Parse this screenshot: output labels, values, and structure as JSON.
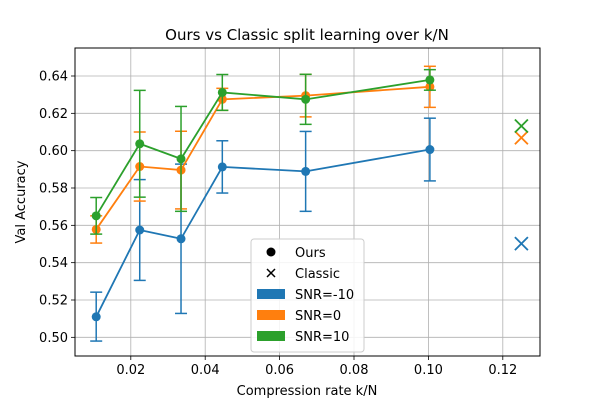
{
  "chart_data": {
    "type": "line",
    "title": "Ours vs Classic split learning over k/N",
    "xlabel": "Compression rate k/N",
    "ylabel": "Val Accuracy",
    "xlim": [
      0.005,
      0.13
    ],
    "ylim": [
      0.49,
      0.655
    ],
    "xticks": [
      0.02,
      0.04,
      0.06,
      0.08,
      0.1,
      0.12
    ],
    "xtick_labels": [
      "0.02",
      "0.04",
      "0.06",
      "0.08",
      "0.10",
      "0.12"
    ],
    "yticks": [
      0.5,
      0.52,
      0.54,
      0.56,
      0.58,
      0.6,
      0.62,
      0.64
    ],
    "ytick_labels": [
      "0.50",
      "0.52",
      "0.54",
      "0.56",
      "0.58",
      "0.60",
      "0.62",
      "0.64"
    ],
    "grid": true,
    "legend_position": "bottom-center",
    "x": [
      0.0107,
      0.0224,
      0.0335,
      0.0446,
      0.067,
      0.1004
    ],
    "series": [
      {
        "name": "SNR=-10",
        "color": "#1f77b4",
        "values": [
          0.511,
          0.5575,
          0.5528,
          0.5913,
          0.5889,
          0.6006
        ],
        "err_low": [
          0.498,
          0.5305,
          0.5128,
          0.5773,
          0.5675,
          0.5838
        ],
        "err_high": [
          0.5242,
          0.5845,
          0.5928,
          0.6053,
          0.6103,
          0.6174
        ],
        "classic": {
          "x": 0.125,
          "value": 0.5502
        }
      },
      {
        "name": "SNR=0",
        "color": "#ff7f0e",
        "values": [
          0.5578,
          0.5915,
          0.5896,
          0.6275,
          0.6295,
          0.6342
        ],
        "err_low": [
          0.5505,
          0.573,
          0.5688,
          0.6216,
          0.6181,
          0.6232
        ],
        "err_high": [
          0.5651,
          0.61,
          0.6104,
          0.6334,
          0.6409,
          0.6452
        ],
        "classic": {
          "x": 0.125,
          "value": 0.6069
        }
      },
      {
        "name": "SNR=10",
        "color": "#2ca02c",
        "values": [
          0.5651,
          0.6037,
          0.5956,
          0.6312,
          0.6275,
          0.6379
        ],
        "err_low": [
          0.5553,
          0.5751,
          0.5675,
          0.6216,
          0.6141,
          0.6324
        ],
        "err_high": [
          0.5749,
          0.6323,
          0.6237,
          0.6408,
          0.6409,
          0.6434
        ],
        "classic": {
          "x": 0.125,
          "value": 0.6132
        }
      }
    ],
    "legend": [
      {
        "marker": "circle",
        "label": "Ours"
      },
      {
        "marker": "x",
        "label": "Classic"
      },
      {
        "marker": "patch",
        "color": "#1f77b4",
        "label": "SNR=-10"
      },
      {
        "marker": "patch",
        "color": "#ff7f0e",
        "label": "SNR=0"
      },
      {
        "marker": "patch",
        "color": "#2ca02c",
        "label": "SNR=10"
      }
    ]
  }
}
